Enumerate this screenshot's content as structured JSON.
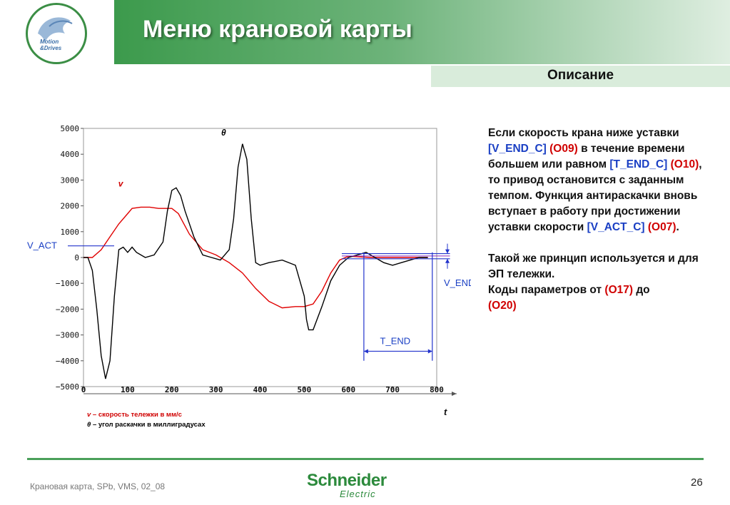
{
  "header": {
    "title": "Меню крановой карты",
    "logo_text_1": "Motion",
    "logo_text_2": "&Drives"
  },
  "description": {
    "heading": "Описание",
    "p1_a": "Если скорость крана ниже уставки ",
    "p1_b": "[V_END_C]",
    "p1_c": " ",
    "p1_d": "(O09)",
    "p1_e": " в течение времени большем или равном ",
    "p1_f": "[T_END_C]",
    "p1_g": " ",
    "p1_h": "(O10)",
    "p1_i": ", то привод остановится с заданным темпом. Функция антираскачки вновь вступает в работу при достижении уставки скорости ",
    "p1_j": "[V_ACT_C]",
    "p1_k": " ",
    "p1_l": "(O07)",
    "p1_m": ".",
    "p2_a": "Такой же принцип используется и для ЭП тележки.",
    "p2_b": "Коды параметров от ",
    "p2_c": "(O17)",
    "p2_d": " до ",
    "p2_e": "(O20)"
  },
  "chart_data": {
    "type": "line",
    "title": "",
    "xlabel": "t",
    "ylabel": "",
    "xlim": [
      0,
      800
    ],
    "ylim": [
      -5000,
      5000
    ],
    "x_ticks": [
      0,
      100,
      200,
      300,
      400,
      500,
      600,
      700,
      800
    ],
    "y_ticks": [
      5000,
      4000,
      3000,
      2000,
      1000,
      0,
      -1000,
      -2000,
      -3000,
      -4000,
      -5000
    ],
    "grid": false,
    "series": [
      {
        "name": "v",
        "color": "#e00000",
        "x": [
          0,
          20,
          40,
          60,
          80,
          100,
          110,
          130,
          150,
          170,
          200,
          215,
          240,
          270,
          300,
          330,
          360,
          390,
          420,
          450,
          480,
          500,
          520,
          540,
          560,
          580,
          600,
          650,
          700,
          780
        ],
        "y": [
          0,
          0,
          300,
          800,
          1300,
          1700,
          1900,
          1950,
          1950,
          1900,
          1900,
          1700,
          900,
          300,
          100,
          -200,
          -600,
          -1200,
          -1700,
          -1950,
          -1900,
          -1900,
          -1800,
          -1300,
          -600,
          -100,
          50,
          0,
          0,
          0
        ]
      },
      {
        "name": "θ",
        "color": "#000000",
        "x": [
          0,
          10,
          20,
          30,
          40,
          50,
          60,
          70,
          80,
          90,
          100,
          110,
          120,
          140,
          160,
          180,
          190,
          200,
          210,
          220,
          230,
          250,
          270,
          290,
          310,
          330,
          340,
          350,
          360,
          370,
          380,
          390,
          400,
          420,
          450,
          480,
          500,
          505,
          510,
          520,
          540,
          560,
          580,
          600,
          620,
          640,
          660,
          680,
          700,
          720,
          740,
          760,
          780
        ],
        "y": [
          0,
          0,
          -500,
          -2000,
          -3800,
          -4700,
          -4000,
          -1500,
          300,
          400,
          200,
          400,
          200,
          0,
          100,
          600,
          1800,
          2600,
          2700,
          2400,
          1800,
          800,
          100,
          0,
          -100,
          300,
          1500,
          3500,
          4400,
          3800,
          1500,
          -200,
          -300,
          -200,
          -100,
          -300,
          -1500,
          -2400,
          -2800,
          -2800,
          -1900,
          -900,
          -300,
          0,
          100,
          200,
          0,
          -200,
          -300,
          -200,
          -100,
          0,
          0
        ]
      }
    ],
    "annotations": [
      {
        "text": "θ",
        "x": 370,
        "y": 5000
      },
      {
        "text": "v",
        "x": 95,
        "y": 2750
      },
      {
        "text": "V_ACT",
        "side": "left",
        "y": 450
      },
      {
        "text": "V_END",
        "side": "right",
        "y": -1000
      },
      {
        "text": "T_END",
        "x1": 635,
        "x2": 790,
        "y": -3300
      }
    ],
    "legend": [
      {
        "symbol": "v",
        "text": " – скорость тележки в мм/с",
        "color": "#d00000"
      },
      {
        "symbol": "θ",
        "text": " – угол раскачки в миллиградусах",
        "color": "#000000"
      }
    ]
  },
  "footer": {
    "left_text": "Крановая карта, SPb, VMS, 02_08",
    "brand_1": "Schneider",
    "brand_2": "Electric",
    "page_number": "26"
  }
}
